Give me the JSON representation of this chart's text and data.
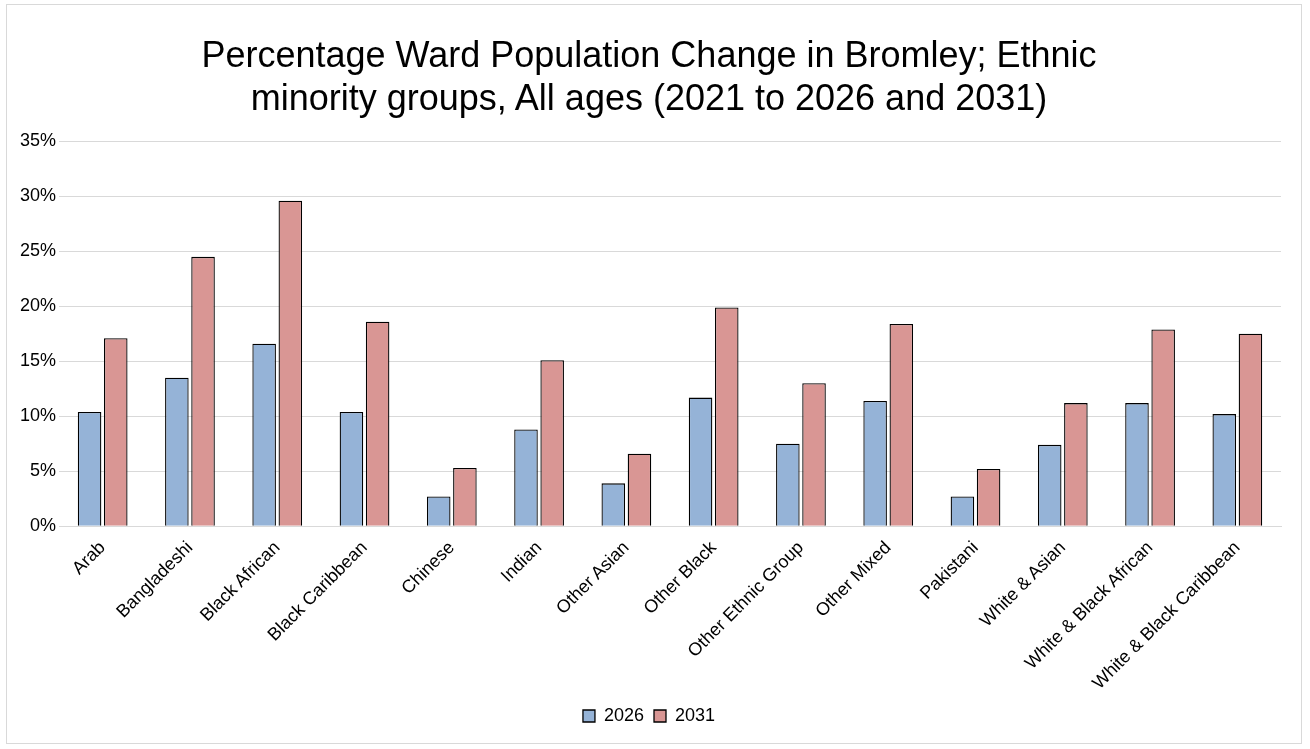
{
  "chart_data": {
    "type": "bar",
    "title": "Percentage Ward Population Change in Bromley; Ethnic minority groups, All ages (2021 to 2026 and 2031)",
    "categories": [
      "Arab",
      "Bangladeshi",
      "Black African",
      "Black Caribbean",
      "Chinese",
      "Indian",
      "Other Asian",
      "Other Black",
      "Other Ethnic Group",
      "Other Mixed",
      "Pakistani",
      "White & Asian",
      "White & Black African",
      "White & Black Caribbean"
    ],
    "series": [
      {
        "name": "2026",
        "color": "#95b3d7",
        "values": [
          10.4,
          13.5,
          16.6,
          10.4,
          2.7,
          8.8,
          3.9,
          11.7,
          7.5,
          11.4,
          2.7,
          7.4,
          11.2,
          10.2
        ]
      },
      {
        "name": "2031",
        "color": "#d99694",
        "values": [
          17.1,
          24.5,
          29.6,
          18.6,
          5.3,
          15.1,
          6.6,
          19.9,
          13.0,
          18.4,
          5.2,
          11.2,
          17.9,
          17.5
        ]
      }
    ],
    "ylim": [
      0,
      35
    ],
    "yticks": [
      {
        "value": 0,
        "label": "0%"
      },
      {
        "value": 5,
        "label": "5%"
      },
      {
        "value": 10,
        "label": "10%"
      },
      {
        "value": 15,
        "label": "15%"
      },
      {
        "value": 20,
        "label": "20%"
      },
      {
        "value": 25,
        "label": "25%"
      },
      {
        "value": 30,
        "label": "30%"
      },
      {
        "value": 35,
        "label": "35%"
      }
    ],
    "grid": "y",
    "legend": "bottom"
  }
}
